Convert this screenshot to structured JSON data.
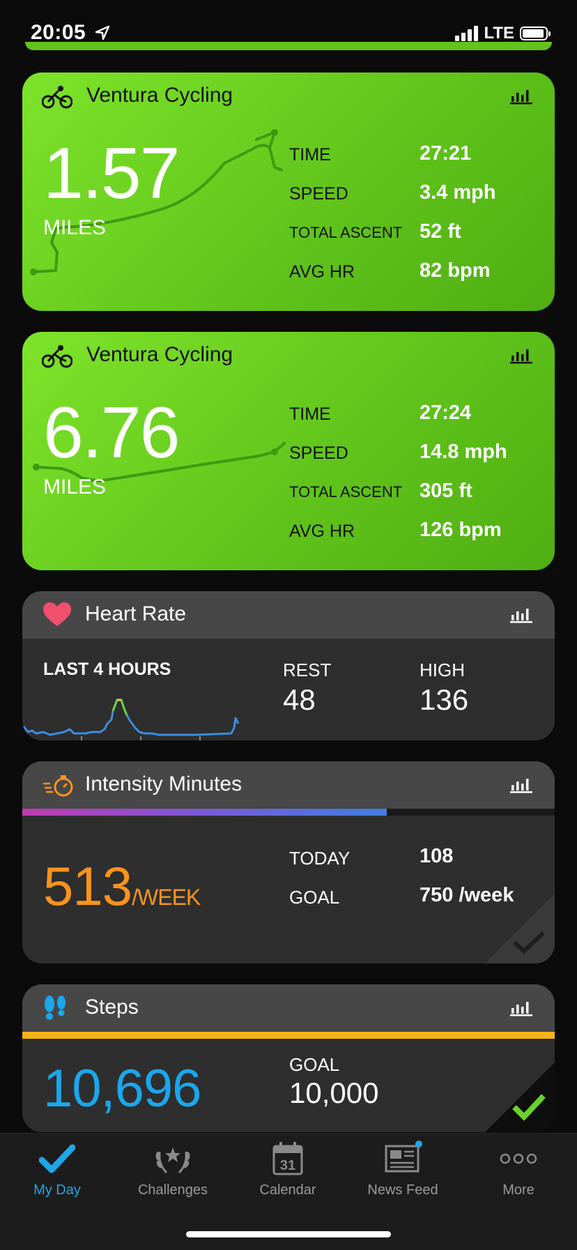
{
  "status": {
    "time": "20:05",
    "carrier": "LTE"
  },
  "colors": {
    "activity_green": "#6cd524",
    "accent_blue": "#1ea7e6",
    "steps_blue": "#1aa7ec",
    "intensity_orange": "#f7941d",
    "heart_red": "#f0506e",
    "check_green": "#6ad12a"
  },
  "activities": [
    {
      "icon": "bike-icon",
      "title": "Ventura Cycling",
      "distance": "1.57",
      "unit": "MILES",
      "stats": [
        {
          "label": "TIME",
          "value": "27:21"
        },
        {
          "label": "SPEED",
          "value": "3.4 mph"
        },
        {
          "label": "TOTAL ASCENT",
          "value": "52 ft"
        },
        {
          "label": "AVG HR",
          "value": "82 bpm"
        }
      ]
    },
    {
      "icon": "bike-icon",
      "title": "Ventura Cycling",
      "distance": "6.76",
      "unit": "MILES",
      "stats": [
        {
          "label": "TIME",
          "value": "27:24"
        },
        {
          "label": "SPEED",
          "value": "14.8 mph"
        },
        {
          "label": "TOTAL ASCENT",
          "value": "305 ft"
        },
        {
          "label": "AVG HR",
          "value": "126 bpm"
        }
      ]
    }
  ],
  "heart_rate": {
    "title": "Heart Rate",
    "period": "LAST 4 HOURS",
    "rest_label": "REST",
    "rest_value": "48",
    "high_label": "HIGH",
    "high_value": "136"
  },
  "intensity": {
    "title": "Intensity Minutes",
    "value": "513",
    "unit": "/WEEK",
    "today_label": "TODAY",
    "today_value": "108",
    "goal_label": "GOAL",
    "goal_value": "750 /week",
    "progress_fraction": 0.684
  },
  "steps": {
    "title": "Steps",
    "value": "10,696",
    "goal_label": "GOAL",
    "goal_value": "10,000"
  },
  "nav": [
    {
      "label": "My Day",
      "icon": "checkmark-icon",
      "active": true
    },
    {
      "label": "Challenges",
      "icon": "laurel-icon",
      "active": false
    },
    {
      "label": "Calendar",
      "icon": "calendar-icon",
      "active": false,
      "day": "31"
    },
    {
      "label": "News Feed",
      "icon": "newspaper-icon",
      "active": false
    },
    {
      "label": "More",
      "icon": "more-icon",
      "active": false
    }
  ]
}
